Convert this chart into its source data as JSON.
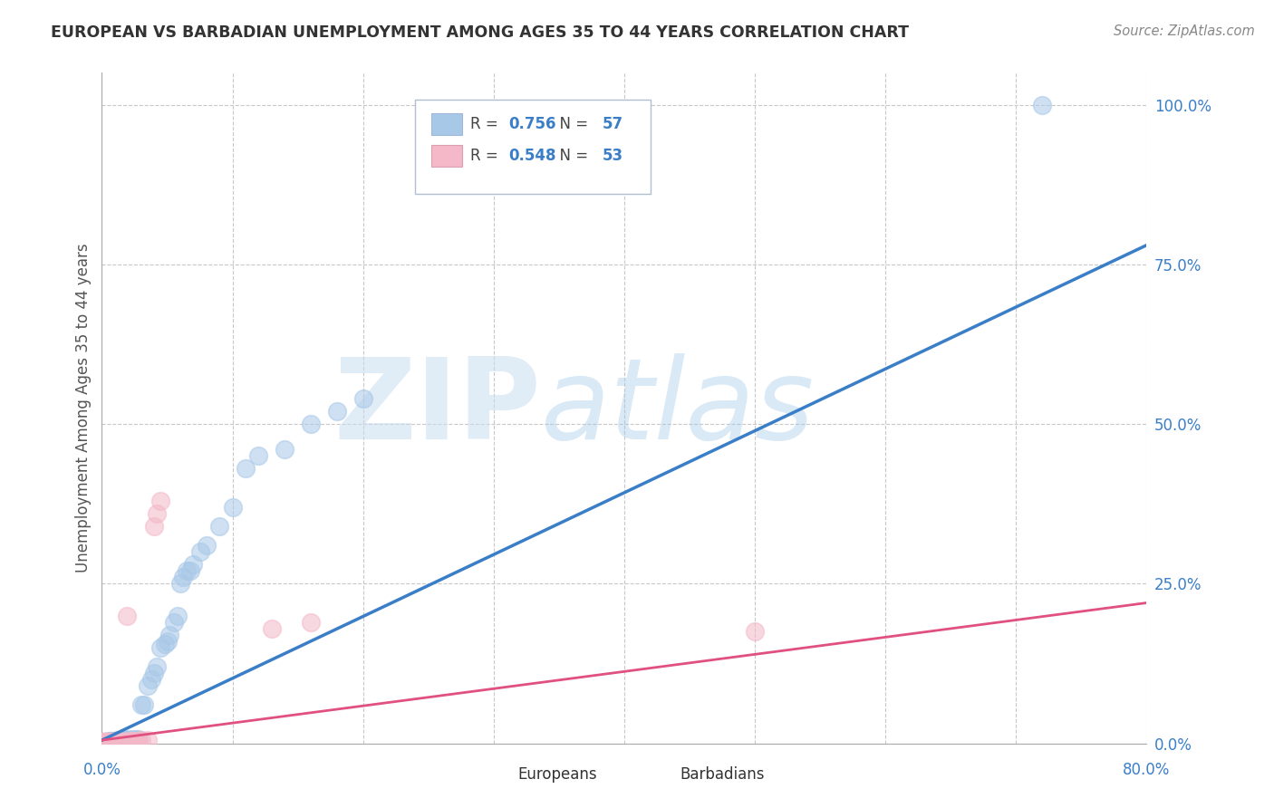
{
  "title": "EUROPEAN VS BARBADIAN UNEMPLOYMENT AMONG AGES 35 TO 44 YEARS CORRELATION CHART",
  "source": "Source: ZipAtlas.com",
  "ylabel": "Unemployment Among Ages 35 to 44 years",
  "watermark_zip": "ZIP",
  "watermark_atlas": "atlas",
  "legend_european": "Europeans",
  "legend_barbadian": "Barbadians",
  "R_european": 0.756,
  "N_european": 57,
  "R_barbadian": 0.548,
  "N_barbadian": 53,
  "european_color": "#a8c8e8",
  "barbadian_color": "#f4b8c8",
  "european_line_color": "#3a7ec8",
  "barbadian_line_color": "#e05080",
  "xmin": 0.0,
  "xmax": 0.8,
  "ymin": 0.0,
  "ymax": 1.05,
  "yticks": [
    0.0,
    0.25,
    0.5,
    0.75,
    1.0
  ],
  "ytick_labels": [
    "0.0%",
    "25.0%",
    "50.0%",
    "75.0%",
    "100.0%"
  ],
  "eu_scatter_x": [
    0.001,
    0.002,
    0.003,
    0.004,
    0.004,
    0.005,
    0.005,
    0.006,
    0.007,
    0.007,
    0.008,
    0.008,
    0.009,
    0.01,
    0.01,
    0.011,
    0.012,
    0.013,
    0.014,
    0.015,
    0.016,
    0.017,
    0.018,
    0.019,
    0.02,
    0.022,
    0.024,
    0.026,
    0.028,
    0.03,
    0.032,
    0.035,
    0.038,
    0.04,
    0.042,
    0.045,
    0.048,
    0.05,
    0.052,
    0.055,
    0.058,
    0.06,
    0.062,
    0.065,
    0.068,
    0.07,
    0.075,
    0.08,
    0.09,
    0.1,
    0.11,
    0.12,
    0.14,
    0.16,
    0.18,
    0.2,
    0.72
  ],
  "eu_scatter_y": [
    0.003,
    0.002,
    0.002,
    0.002,
    0.003,
    0.003,
    0.004,
    0.002,
    0.003,
    0.004,
    0.003,
    0.004,
    0.003,
    0.004,
    0.003,
    0.004,
    0.005,
    0.004,
    0.005,
    0.004,
    0.005,
    0.004,
    0.005,
    0.005,
    0.006,
    0.005,
    0.006,
    0.006,
    0.007,
    0.06,
    0.06,
    0.09,
    0.1,
    0.11,
    0.12,
    0.15,
    0.155,
    0.16,
    0.17,
    0.19,
    0.2,
    0.25,
    0.26,
    0.27,
    0.27,
    0.28,
    0.3,
    0.31,
    0.34,
    0.37,
    0.43,
    0.45,
    0.46,
    0.5,
    0.52,
    0.54,
    1.0
  ],
  "bar_scatter_x": [
    0.001,
    0.001,
    0.002,
    0.002,
    0.003,
    0.003,
    0.004,
    0.004,
    0.005,
    0.005,
    0.006,
    0.006,
    0.007,
    0.007,
    0.008,
    0.008,
    0.009,
    0.009,
    0.01,
    0.01,
    0.011,
    0.011,
    0.012,
    0.012,
    0.013,
    0.013,
    0.014,
    0.014,
    0.015,
    0.015,
    0.016,
    0.016,
    0.017,
    0.017,
    0.018,
    0.018,
    0.019,
    0.02,
    0.021,
    0.022,
    0.023,
    0.024,
    0.025,
    0.026,
    0.028,
    0.03,
    0.035,
    0.04,
    0.042,
    0.045,
    0.13,
    0.16,
    0.5
  ],
  "bar_scatter_y": [
    0.002,
    0.003,
    0.002,
    0.003,
    0.002,
    0.003,
    0.002,
    0.003,
    0.002,
    0.003,
    0.002,
    0.003,
    0.002,
    0.003,
    0.002,
    0.003,
    0.002,
    0.003,
    0.002,
    0.003,
    0.002,
    0.003,
    0.002,
    0.003,
    0.002,
    0.003,
    0.002,
    0.003,
    0.002,
    0.003,
    0.002,
    0.003,
    0.002,
    0.003,
    0.002,
    0.003,
    0.2,
    0.003,
    0.004,
    0.003,
    0.004,
    0.003,
    0.004,
    0.003,
    0.004,
    0.005,
    0.005,
    0.34,
    0.36,
    0.38,
    0.18,
    0.19,
    0.175
  ],
  "eu_line_x0": 0.0,
  "eu_line_y0": 0.005,
  "eu_line_x1": 0.8,
  "eu_line_y1": 0.78,
  "bar_line_x0": 0.0,
  "bar_line_y0": 0.005,
  "bar_line_x1": 0.8,
  "bar_line_y1": 0.22
}
